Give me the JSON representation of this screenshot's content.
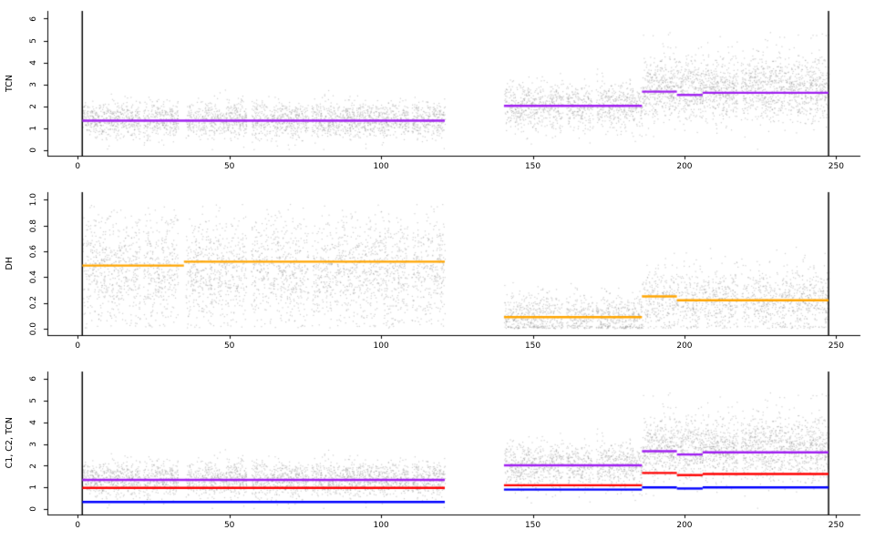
{
  "figure": {
    "background": "#ffffff",
    "point_color": "#8a8a8a",
    "point_alpha": 0.42,
    "axis_color": "#000000",
    "boundary_line_color": "#000000",
    "segment_line_width": 2.4
  },
  "chart_data": [
    {
      "type": "scatter",
      "title": "",
      "ylabel": "TCN",
      "xlabel": "",
      "seed": 101,
      "xlim": [
        -10,
        258
      ],
      "ylim": [
        -0.25,
        6.35
      ],
      "xticks": [
        0,
        50,
        100,
        150,
        200,
        250
      ],
      "xticklabels": [
        "0",
        "50",
        "100",
        "150",
        "200",
        "250"
      ],
      "yticks": [
        0,
        1,
        2,
        3,
        4,
        5,
        6
      ],
      "yticklabels": [
        "0",
        "1",
        "2",
        "3",
        "4",
        "5",
        "6"
      ],
      "vlines": [
        1.5,
        247.5
      ],
      "gaps": [
        [
          20.5,
          21.5
        ],
        [
          33,
          35.5
        ],
        [
          55.5,
          57
        ],
        [
          76,
          77
        ],
        [
          109,
          110
        ],
        [
          160,
          161
        ],
        [
          169.8,
          170.8
        ],
        [
          217.5,
          218.5
        ]
      ],
      "clouds": [
        {
          "x0": 1.5,
          "x1": 121,
          "mean": 1.4,
          "sd": 0.42,
          "n": 2800,
          "clip": [
            0.05,
            6.2
          ]
        },
        {
          "x0": 140.5,
          "x1": 186,
          "mean": 2.0,
          "sd": 0.52,
          "n": 1100,
          "clip": [
            0.05,
            6.2
          ]
        },
        {
          "x0": 186,
          "x1": 247.5,
          "mean": 2.8,
          "sd": 0.72,
          "n": 2000,
          "clip": [
            0.05,
            6.2
          ],
          "uniform_frac": 0.06,
          "uniform_range": [
            1.2,
            5.4
          ]
        }
      ],
      "segments": [
        {
          "name": "tcn-mean",
          "color": "#A020F0",
          "points": [
            [
              1.5,
              121,
              1.35
            ],
            [
              140.5,
              186,
              2.02
            ],
            [
              186,
              197.5,
              2.67
            ],
            [
              197.5,
              206,
              2.52
            ],
            [
              206,
              247.5,
              2.62
            ]
          ]
        }
      ]
    },
    {
      "type": "scatter",
      "title": "",
      "ylabel": "DH",
      "xlabel": "",
      "seed": 202,
      "xlim": [
        -10,
        258
      ],
      "ylim": [
        -0.05,
        1.06
      ],
      "xticks": [
        0,
        50,
        100,
        150,
        200,
        250
      ],
      "xticklabels": [
        "0",
        "50",
        "100",
        "150",
        "200",
        "250"
      ],
      "yticks": [
        0,
        0.2,
        0.4,
        0.6,
        0.8,
        1
      ],
      "yticklabels": [
        "0.0",
        "0.2",
        "0.4",
        "0.6",
        "0.8",
        "1.0"
      ],
      "vlines": [
        1.5,
        247.5
      ],
      "gaps": [
        [
          20.5,
          21.5
        ],
        [
          33,
          35.5
        ],
        [
          55.5,
          57
        ],
        [
          76,
          77
        ],
        [
          109,
          110
        ],
        [
          160,
          161
        ],
        [
          169.8,
          170.8
        ],
        [
          217.5,
          218.5
        ]
      ],
      "clouds": [
        {
          "x0": 1.5,
          "x1": 121,
          "mean": 0.46,
          "sd": 0.2,
          "n": 3200,
          "clip": [
            0.01,
            0.97
          ],
          "uniform_frac": 0.18,
          "uniform_range": [
            0.02,
            0.88
          ]
        },
        {
          "x0": 140.5,
          "x1": 186,
          "mean": 0.1,
          "sd": 0.09,
          "n": 950,
          "clip": [
            0.005,
            0.55
          ]
        },
        {
          "x0": 186,
          "x1": 247.5,
          "mean": 0.22,
          "sd": 0.13,
          "n": 1400,
          "clip": [
            0.005,
            0.65
          ]
        }
      ],
      "segments": [
        {
          "name": "dh-mean",
          "color": "#FFA500",
          "points": [
            [
              1.5,
              35,
              0.49
            ],
            [
              35,
              121,
              0.52
            ],
            [
              140.5,
              186,
              0.09
            ],
            [
              186,
              197.5,
              0.25
            ],
            [
              197.5,
              247.5,
              0.22
            ]
          ]
        }
      ]
    },
    {
      "type": "scatter",
      "title": "",
      "ylabel": "C1, C2, TCN",
      "xlabel": "",
      "seed": 101,
      "xlim": [
        -10,
        258
      ],
      "ylim": [
        -0.25,
        6.35
      ],
      "xticks": [
        0,
        50,
        100,
        150,
        200,
        250
      ],
      "xticklabels": [
        "0",
        "50",
        "100",
        "150",
        "200",
        "250"
      ],
      "yticks": [
        0,
        1,
        2,
        3,
        4,
        5,
        6
      ],
      "yticklabels": [
        "0",
        "1",
        "2",
        "3",
        "4",
        "5",
        "6"
      ],
      "vlines": [
        1.5,
        247.5
      ],
      "gaps": [
        [
          20.5,
          21.5
        ],
        [
          33,
          35.5
        ],
        [
          55.5,
          57
        ],
        [
          76,
          77
        ],
        [
          109,
          110
        ],
        [
          160,
          161
        ],
        [
          169.8,
          170.8
        ],
        [
          217.5,
          218.5
        ]
      ],
      "clouds": [
        {
          "x0": 1.5,
          "x1": 121,
          "mean": 1.4,
          "sd": 0.42,
          "n": 2800,
          "clip": [
            0.05,
            6.2
          ]
        },
        {
          "x0": 140.5,
          "x1": 186,
          "mean": 2.0,
          "sd": 0.52,
          "n": 1100,
          "clip": [
            0.05,
            6.2
          ]
        },
        {
          "x0": 186,
          "x1": 247.5,
          "mean": 2.8,
          "sd": 0.72,
          "n": 2000,
          "clip": [
            0.05,
            6.2
          ],
          "uniform_frac": 0.06,
          "uniform_range": [
            1.2,
            5.4
          ]
        }
      ],
      "segments": [
        {
          "name": "c1-mean",
          "color": "#0000FF",
          "points": [
            [
              1.5,
              121,
              0.33
            ],
            [
              140.5,
              186,
              0.9
            ],
            [
              186,
              197.5,
              1.0
            ],
            [
              197.5,
              206,
              0.95
            ],
            [
              206,
              247.5,
              1.0
            ]
          ]
        },
        {
          "name": "c2-mean",
          "color": "#FF0000",
          "points": [
            [
              1.5,
              121,
              0.98
            ],
            [
              140.5,
              186,
              1.1
            ],
            [
              186,
              197.5,
              1.67
            ],
            [
              197.5,
              206,
              1.57
            ],
            [
              206,
              247.5,
              1.62
            ]
          ]
        },
        {
          "name": "tcn-mean",
          "color": "#A020F0",
          "points": [
            [
              1.5,
              121,
              1.35
            ],
            [
              140.5,
              186,
              2.02
            ],
            [
              186,
              197.5,
              2.67
            ],
            [
              197.5,
              206,
              2.52
            ],
            [
              206,
              247.5,
              2.62
            ]
          ]
        }
      ]
    }
  ]
}
